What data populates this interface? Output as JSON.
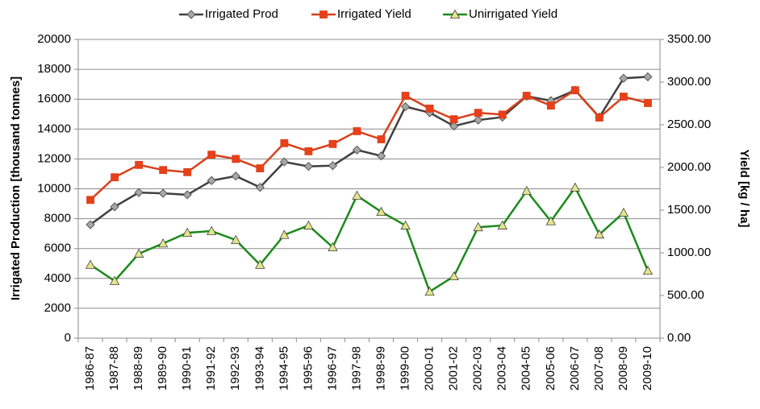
{
  "chart_data": {
    "type": "line",
    "categories": [
      "1986-87",
      "1987-88",
      "1988-89",
      "1989-90",
      "1990-91",
      "1991-92",
      "1992-93",
      "1993-94",
      "1994-95",
      "1995-96",
      "1996-97",
      "1997-98",
      "1998-99",
      "1999-00",
      "2000-01",
      "2001-02",
      "2002-03",
      "2003-04",
      "2004-05",
      "2005-06",
      "2006-07",
      "2007-08",
      "2008-09",
      "2009-10"
    ],
    "series": [
      {
        "name": "Irrigated Prod",
        "color": "#404040",
        "marker": "diamond",
        "marker_color": "#a6a6a6",
        "values": [
          7600,
          8800,
          9750,
          9700,
          9600,
          10550,
          10850,
          10100,
          11800,
          11500,
          11550,
          12600,
          12200,
          15500,
          15100,
          14200,
          14600,
          14800,
          16200,
          15900,
          16600,
          14800,
          17400,
          17500
        ]
      },
      {
        "name": "Irrigated Yield",
        "color": "#d8401a",
        "marker": "square",
        "marker_color": "#e8401a",
        "axis": "y2",
        "values": [
          1620,
          1885,
          2030,
          1970,
          1945,
          2150,
          2100,
          1990,
          2285,
          2190,
          2275,
          2425,
          2330,
          2840,
          2690,
          2565,
          2640,
          2620,
          2840,
          2725,
          2905,
          2585,
          2830,
          2755
        ]
      },
      {
        "name": "Unirrigated Yield",
        "color": "#1a8a1a",
        "marker": "triangle",
        "marker_color": "#e4e48c",
        "axis": "y2",
        "values": [
          860,
          670,
          990,
          1110,
          1235,
          1255,
          1150,
          860,
          1210,
          1320,
          1065,
          1670,
          1480,
          1320,
          545,
          725,
          1300,
          1320,
          1725,
          1370,
          1765,
          1215,
          1470,
          790
        ]
      }
    ],
    "ylabel": "Irrigated Production [thousand tonnes]",
    "y2label": "Yield [kg / ha]",
    "ylim": [
      0,
      20000
    ],
    "yticks": [
      0,
      2000,
      4000,
      6000,
      8000,
      10000,
      12000,
      14000,
      16000,
      18000,
      20000
    ],
    "y2lim": [
      0,
      3500
    ],
    "y2ticks": [
      {
        "value": 0,
        "label": "0.00"
      },
      {
        "value": 500,
        "label": "500.00"
      },
      {
        "value": 1000,
        "label": "1000.00"
      },
      {
        "value": 1500,
        "label": "1500.00"
      },
      {
        "value": 2000,
        "label": "2000.00"
      },
      {
        "value": 2500,
        "label": "2500.00"
      },
      {
        "value": 3000,
        "label": "3000.00"
      },
      {
        "value": 3500,
        "label": "3500.00"
      }
    ],
    "grid": true,
    "legend": "top"
  }
}
